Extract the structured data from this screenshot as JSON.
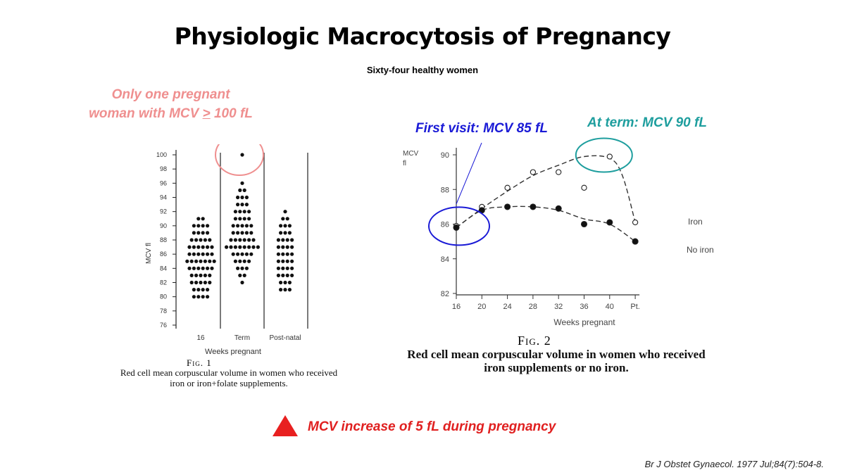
{
  "title": "Physiologic Macrocytosis of Pregnancy",
  "subtitle": "Sixty-four healthy women",
  "annotations": {
    "pink": {
      "line1": "Only one pregnant",
      "line2_pre": "woman with MCV ",
      "line2_sym": ">",
      "line2_post": " 100 fL",
      "color": "#ef8f8f"
    },
    "blue": {
      "text": "First visit: MCV 85 fL",
      "color": "#1a1ad6"
    },
    "teal": {
      "text": "At term: MCV 90 fL",
      "color": "#1e9e9e"
    }
  },
  "bottom_note": {
    "text": "MCV increase of 5 fL during pregnancy",
    "color": "#e02020",
    "icon": "triangle-up-icon"
  },
  "citation": "Br J Obstet Gynaecol. 1977 Jul;84(7):504-8.",
  "fig1": {
    "caption_label": "Fig. 1",
    "caption_text": "Red cell mean corpuscular volume in women who received iron or iron+folate supplements."
  },
  "fig2": {
    "caption_label": "Fig. 2",
    "caption_text": "Red cell mean corpuscular volume in women who received iron supplements or no iron."
  },
  "chart_data": [
    {
      "type": "scatter",
      "title": "",
      "ylabel": "MCV fl",
      "xlabel": "Weeks pregnant",
      "ylim": [
        76,
        100
      ],
      "yticks": [
        76,
        78,
        80,
        82,
        84,
        86,
        88,
        90,
        92,
        94,
        96,
        98,
        100
      ],
      "categories": [
        "16",
        "Term",
        "Post-natal"
      ],
      "groups": [
        {
          "name": "16",
          "counts": [
            {
              "value": 80,
              "n": 4
            },
            {
              "value": 81,
              "n": 4
            },
            {
              "value": 82,
              "n": 5
            },
            {
              "value": 83,
              "n": 5
            },
            {
              "value": 84,
              "n": 6
            },
            {
              "value": 85,
              "n": 7
            },
            {
              "value": 86,
              "n": 6
            },
            {
              "value": 87,
              "n": 6
            },
            {
              "value": 88,
              "n": 5
            },
            {
              "value": 89,
              "n": 4
            },
            {
              "value": 90,
              "n": 4
            },
            {
              "value": 91,
              "n": 2
            }
          ]
        },
        {
          "name": "Term",
          "counts": [
            {
              "value": 82,
              "n": 1
            },
            {
              "value": 83,
              "n": 2
            },
            {
              "value": 84,
              "n": 3
            },
            {
              "value": 85,
              "n": 4
            },
            {
              "value": 86,
              "n": 5
            },
            {
              "value": 87,
              "n": 8
            },
            {
              "value": 88,
              "n": 6
            },
            {
              "value": 89,
              "n": 5
            },
            {
              "value": 90,
              "n": 5
            },
            {
              "value": 91,
              "n": 4
            },
            {
              "value": 92,
              "n": 4
            },
            {
              "value": 93,
              "n": 3
            },
            {
              "value": 94,
              "n": 3
            },
            {
              "value": 95,
              "n": 2
            },
            {
              "value": 96,
              "n": 1
            },
            {
              "value": 100,
              "n": 1
            }
          ]
        },
        {
          "name": "Post-natal",
          "counts": [
            {
              "value": 81,
              "n": 3
            },
            {
              "value": 82,
              "n": 3
            },
            {
              "value": 83,
              "n": 4
            },
            {
              "value": 84,
              "n": 4
            },
            {
              "value": 85,
              "n": 4
            },
            {
              "value": 86,
              "n": 4
            },
            {
              "value": 87,
              "n": 4
            },
            {
              "value": 88,
              "n": 4
            },
            {
              "value": 89,
              "n": 3
            },
            {
              "value": 90,
              "n": 3
            },
            {
              "value": 91,
              "n": 2
            },
            {
              "value": 92,
              "n": 1
            }
          ]
        }
      ],
      "highlight": {
        "category": "Term",
        "value": 100,
        "color": "#ef8f8f"
      }
    },
    {
      "type": "line",
      "title": "",
      "ylabel": "MCV fl",
      "xlabel": "Weeks pregnant",
      "ylim": [
        82,
        90
      ],
      "yticks": [
        82,
        84,
        86,
        88,
        90
      ],
      "x": [
        16,
        20,
        24,
        28,
        32,
        36,
        40,
        44
      ],
      "xtick_labels": [
        "16",
        "20",
        "24",
        "28",
        "32",
        "36",
        "40",
        "Pt."
      ],
      "series": [
        {
          "name": "Iron",
          "marker": "open",
          "values": [
            85.9,
            87.0,
            88.1,
            89.0,
            89.0,
            88.1,
            89.9,
            86.1
          ],
          "curve": [
            [
              16,
              85.8
            ],
            [
              20,
              86.9
            ],
            [
              24,
              87.9
            ],
            [
              28,
              88.8
            ],
            [
              32,
              89.4
            ],
            [
              36,
              89.9
            ],
            [
              40,
              89.8
            ],
            [
              42,
              88.8
            ],
            [
              44,
              86.1
            ]
          ]
        },
        {
          "name": "No iron",
          "marker": "filled",
          "values": [
            85.8,
            86.8,
            87.0,
            87.0,
            86.9,
            86.0,
            86.1,
            85.0
          ],
          "curve": [
            [
              16,
              85.8
            ],
            [
              20,
              86.8
            ],
            [
              24,
              87.0
            ],
            [
              28,
              87.0
            ],
            [
              32,
              86.8
            ],
            [
              36,
              86.3
            ],
            [
              40,
              86.0
            ],
            [
              44,
              85.0
            ]
          ]
        }
      ],
      "highlights": [
        {
          "x": 16,
          "y": 85.8,
          "color": "#1a1ad6"
        },
        {
          "x": 40,
          "y": 89.9,
          "color": "#1e9e9e"
        }
      ]
    }
  ]
}
